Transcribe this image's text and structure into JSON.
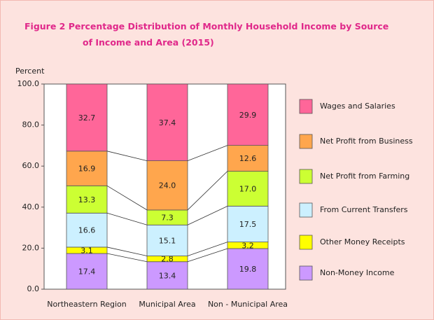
{
  "chart_data": {
    "type": "stacked_bar",
    "title": [
      "Figure  2  Percentage Distribution of Monthly Household Income by Source",
      "of Income and Area (2015)"
    ],
    "y_axis_label": "Percent",
    "categories": [
      "Northeastern Region",
      "Municipal Area",
      "Non - Municipal Area"
    ],
    "series": [
      {
        "name": "Non-Money Income",
        "color": "#cc99ff",
        "values": [
          17.4,
          13.4,
          19.8
        ],
        "value_labels": [
          "17.4",
          "13.4",
          "19.8"
        ]
      },
      {
        "name": "Other Money Receipts",
        "color": "#ffff00",
        "values": [
          3.1,
          2.8,
          3.2
        ],
        "value_labels": [
          "3.1",
          "2.8",
          "3.2"
        ]
      },
      {
        "name": "From Current Transfers",
        "color": "#ccf0ff",
        "values": [
          16.6,
          15.1,
          17.5
        ],
        "value_labels": [
          "16.6",
          "15.1",
          "17.5"
        ]
      },
      {
        "name": "Net Profit from Farming",
        "color": "#ccff33",
        "values": [
          13.3,
          7.3,
          17.0
        ],
        "value_labels": [
          "13.3",
          "7.3",
          "17.0"
        ]
      },
      {
        "name": "Net Profit from Business",
        "color": "#ffa64d",
        "values": [
          16.9,
          24.0,
          12.6
        ],
        "value_labels": [
          "16.9",
          "24.0",
          "12.6"
        ]
      },
      {
        "name": "Wages and Salaries",
        "color": "#ff6699",
        "values": [
          32.7,
          37.4,
          29.9
        ],
        "value_labels": [
          "32.7",
          "37.4",
          "29.9"
        ]
      }
    ],
    "ylim": [
      0,
      100
    ],
    "yticks": [
      {
        "value": 0,
        "label": "0.0"
      },
      {
        "value": 20,
        "label": "20.0"
      },
      {
        "value": 40,
        "label": "40.0"
      },
      {
        "value": 60,
        "label": "60.0"
      },
      {
        "value": 80,
        "label": "80.0"
      },
      {
        "value": 100,
        "label": "100.0"
      }
    ],
    "legend": "right"
  }
}
